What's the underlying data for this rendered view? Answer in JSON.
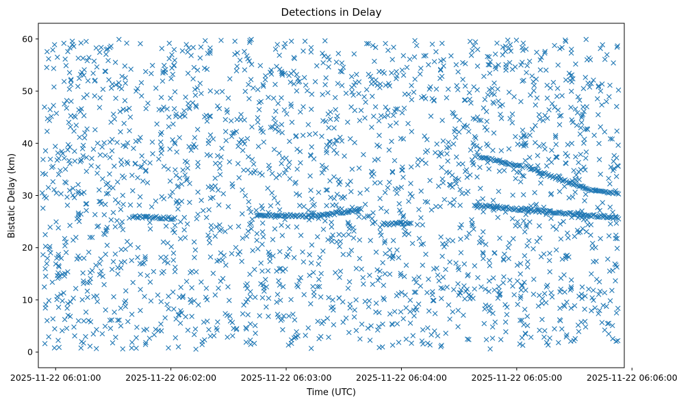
{
  "chart_data": {
    "type": "scatter",
    "title": "Detections in Delay",
    "xlabel": "Time (UTC)",
    "ylabel": "Bistatic Delay (km)",
    "marker": "x",
    "color": "#1f77b4",
    "grid": false,
    "x_range": [
      "2025-11-22 06:00:51",
      "2025-11-22 06:05:56"
    ],
    "ylim": [
      -3,
      63
    ],
    "x_ticks": [
      "2025-11-22 06:01:00",
      "2025-11-22 06:02:00",
      "2025-11-22 06:03:00",
      "2025-11-22 06:04:00",
      "2025-11-22 06:05:00",
      "2025-11-22 06:06:00"
    ],
    "y_ticks": [
      "0",
      "10",
      "20",
      "30",
      "40",
      "50",
      "60"
    ],
    "y_tick_values": [
      0,
      10,
      20,
      30,
      40,
      50,
      60
    ],
    "series_note_start": "2025-11-22 06:00:53",
    "series_note_end": "2025-11-22 06:05:53",
    "tracks": [
      {
        "x": [
          "2025-11-22 06:01:40",
          "2025-11-22 06:02:02"
        ],
        "y": [
          26.0,
          25.6
        ]
      },
      {
        "x": [
          "2025-11-22 06:02:45",
          "2025-11-22 06:03:15"
        ],
        "y": [
          26.3,
          26.0
        ]
      },
      {
        "x": [
          "2025-11-22 06:03:15",
          "2025-11-22 06:03:39"
        ],
        "y": [
          26.0,
          27.3
        ]
      },
      {
        "x": [
          "2025-11-22 06:03:50",
          "2025-11-22 06:04:05"
        ],
        "y": [
          24.5,
          24.8
        ]
      },
      {
        "x": [
          "2025-11-22 06:04:38",
          "2025-11-22 06:05:53"
        ],
        "y": [
          28.1,
          25.7
        ]
      },
      {
        "x": [
          "2025-11-22 06:04:40",
          "2025-11-22 06:05:03"
        ],
        "y": [
          37.5,
          35.5
        ]
      },
      {
        "x": [
          "2025-11-22 06:05:05",
          "2025-11-22 06:05:36"
        ],
        "y": [
          35.5,
          31.3
        ]
      },
      {
        "x": [
          "2025-11-22 06:05:36",
          "2025-11-22 06:05:53"
        ],
        "y": [
          31.3,
          30.3
        ]
      }
    ],
    "clutter_count": 2200
  }
}
